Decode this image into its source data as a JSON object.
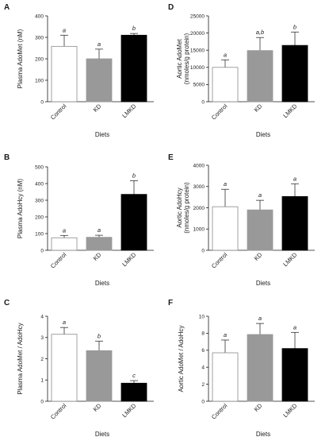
{
  "chart_data": [
    {
      "type": "bar",
      "panel": "A",
      "categories": [
        "Control",
        "KD",
        "LMKD"
      ],
      "values": [
        258,
        200,
        310
      ],
      "errors": [
        52,
        45,
        8
      ],
      "sig": [
        "a",
        "a",
        "b"
      ],
      "ylabel": "Plasma AdoMet (nM)",
      "xlabel": "Diets",
      "ylim": [
        0,
        400
      ],
      "yticks": [
        0,
        100,
        200,
        300,
        400
      ],
      "grid": false
    },
    {
      "type": "bar",
      "panel": "B",
      "categories": [
        "Control",
        "KD",
        "LMKD"
      ],
      "values": [
        75,
        78,
        335
      ],
      "errors": [
        14,
        12,
        82
      ],
      "sig": [
        "a",
        "a",
        "b"
      ],
      "ylabel": "Plasma AdoHcy (nM)",
      "xlabel": "Diets",
      "ylim": [
        0,
        500
      ],
      "yticks": [
        0,
        100,
        200,
        300,
        400,
        500
      ],
      "grid": false
    },
    {
      "type": "bar",
      "panel": "C",
      "categories": [
        "Control",
        "KD",
        "LMKD"
      ],
      "values": [
        3.15,
        2.38,
        0.85
      ],
      "errors": [
        0.32,
        0.45,
        0.12
      ],
      "sig": [
        "a",
        "b",
        "c"
      ],
      "ylabel": "Plasma AdoMet / AdoHcy",
      "xlabel": "Diets",
      "ylim": [
        0,
        4
      ],
      "yticks": [
        0,
        1,
        2,
        3,
        4
      ],
      "grid": false
    },
    {
      "type": "bar",
      "panel": "D",
      "categories": [
        "Control",
        "KD",
        "LMKD"
      ],
      "values": [
        10000,
        14900,
        16400
      ],
      "errors": [
        2200,
        3800,
        3900
      ],
      "sig": [
        "a",
        "a,b",
        "b"
      ],
      "ylabel": "Aortic AdoMet",
      "ylabel2": "(nmoles/g protein)",
      "xlabel": "Diets",
      "ylim": [
        0,
        25000
      ],
      "yticks": [
        0,
        5000,
        10000,
        15000,
        20000,
        25000
      ],
      "grid": false
    },
    {
      "type": "bar",
      "panel": "E",
      "categories": [
        "Control",
        "KD",
        "LMKD"
      ],
      "values": [
        2050,
        1900,
        2530
      ],
      "errors": [
        820,
        450,
        600
      ],
      "sig": [
        "a",
        "a",
        "a"
      ],
      "ylabel": "Aortic AdoHcy",
      "ylabel2": "(nmoles/g protein)",
      "xlabel": "Diets",
      "ylim": [
        0,
        4000
      ],
      "yticks": [
        0,
        1000,
        2000,
        3000,
        4000
      ],
      "grid": false
    },
    {
      "type": "bar",
      "panel": "F",
      "categories": [
        "Control",
        "KD",
        "LMKD"
      ],
      "values": [
        5.7,
        7.85,
        6.2
      ],
      "errors": [
        1.5,
        1.3,
        1.9
      ],
      "sig": [
        "a",
        "a",
        "a"
      ],
      "ylabel": "Aortic AdoMet / AdoHcy",
      "xlabel": "Diets",
      "ylim": [
        0,
        10
      ],
      "yticks": [
        0,
        2,
        4,
        6,
        8,
        10
      ],
      "grid": false
    }
  ],
  "colors": {
    "Control": "#ffffff",
    "KD": "#999999",
    "LMKD": "#000000",
    "axis": "#1a1a1a"
  }
}
